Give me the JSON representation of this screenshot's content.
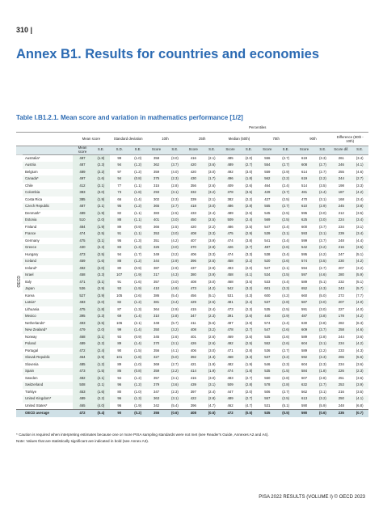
{
  "header": {
    "page_number": "310 |",
    "title": "Annex B1. Results for countries and economies"
  },
  "table": {
    "title": "Table I.B1.2.1. Mean score and variation in mathematics performance [1/2]",
    "group_label": "Percentiles",
    "columns": [
      "Mean score",
      "Standard deviation",
      "10th",
      "25th",
      "Median (50th)",
      "75th",
      "90th",
      "Difference (90th - 10th)"
    ],
    "subcolumns": [
      "Mean score",
      "S.E.",
      "S.D.",
      "S.E.",
      "Score",
      "S.E.",
      "Score",
      "S.E.",
      "Score",
      "S.E.",
      "Score",
      "S.E.",
      "Score",
      "S.E.",
      "Score dif.",
      "S.E."
    ],
    "side_label": "OECD",
    "rows": [
      {
        "country": "Australia*",
        "values": [
          "487",
          "(1.8)",
          "99",
          "(1.0)",
          "358",
          "(3.0)",
          "416",
          "(2.1)",
          "485",
          "(2.0)",
          "556",
          "(2.7)",
          "619",
          "(3.3)",
          "261",
          "(3.4)"
        ]
      },
      {
        "country": "Austria",
        "values": [
          "487",
          "(2.3)",
          "94",
          "(1.2)",
          "362",
          "(3.7)",
          "420",
          "(3.6)",
          "489",
          "(2.7)",
          "554",
          "(2.7)",
          "608",
          "(2.7)",
          "246",
          "(4.1)"
        ]
      },
      {
        "country": "Belgium",
        "values": [
          "489",
          "(2.2)",
          "97",
          "(1.2)",
          "359",
          "(4.0)",
          "420",
          "(3.0)",
          "492",
          "(3.0)",
          "559",
          "(2.9)",
          "614",
          "(2.7)",
          "255",
          "(4.6)"
        ]
      },
      {
        "country": "Canada*",
        "values": [
          "497",
          "(1.6)",
          "94",
          "(0.8)",
          "375",
          "(2.3)",
          "430",
          "(1.7)",
          "496",
          "(1.8)",
          "562",
          "(2.2)",
          "619",
          "(2.2)",
          "244",
          "(2.7)"
        ]
      },
      {
        "country": "Chile",
        "values": [
          "412",
          "(2.1)",
          "77",
          "(1.1)",
          "315",
          "(2.8)",
          "356",
          "(2.6)",
          "409",
          "(2.6)",
          "464",
          "(2.4)",
          "514",
          "(3.5)",
          "198",
          "(3.3)"
        ]
      },
      {
        "country": "Colombia",
        "values": [
          "383",
          "(3.0)",
          "73",
          "(1.8)",
          "293",
          "(3.1)",
          "332",
          "(3.2)",
          "378",
          "(3.5)",
          "429",
          "(3.7)",
          "481",
          "(4.4)",
          "187",
          "(4.2)"
        ]
      },
      {
        "country": "Costa Rica",
        "values": [
          "385",
          "(1.9)",
          "66",
          "(1.4)",
          "302",
          "(2.3)",
          "339",
          "(2.1)",
          "382",
          "(2.2)",
          "427",
          "(2.5)",
          "470",
          "(3.1)",
          "168",
          "(3.4)"
        ]
      },
      {
        "country": "Czech Republic",
        "values": [
          "487",
          "(2.1)",
          "95",
          "(1.2)",
          "365",
          "(2.7)",
          "418",
          "(3.0)",
          "486",
          "(2.8)",
          "555",
          "(2.7)",
          "610",
          "(2.9)",
          "245",
          "(3.8)"
        ]
      },
      {
        "country": "Denmark*",
        "values": [
          "489",
          "(1.9)",
          "82",
          "(1.1)",
          "383",
          "(2.5)",
          "433",
          "(2.4)",
          "489",
          "(2.5)",
          "545",
          "(2.5)",
          "595",
          "(3.0)",
          "212",
          "(3.5)"
        ]
      },
      {
        "country": "Estonia",
        "values": [
          "510",
          "(2.0)",
          "88",
          "(1.1)",
          "401",
          "(3.0)",
          "450",
          "(2.5)",
          "509",
          "(2.4)",
          "569",
          "(2.5)",
          "625",
          "(3.0)",
          "224",
          "(3.4)"
        ]
      },
      {
        "country": "Finland",
        "values": [
          "484",
          "(1.9)",
          "89",
          "(0.9)",
          "366",
          "(2.5)",
          "420",
          "(2.2)",
          "486",
          "(2.5)",
          "547",
          "(2.4)",
          "600",
          "(3.7)",
          "234",
          "(3.1)"
        ]
      },
      {
        "country": "France",
        "values": [
          "474",
          "(2.5)",
          "91",
          "(1.1)",
          "353",
          "(3.0)",
          "408",
          "(3.3)",
          "475",
          "(2.9)",
          "539",
          "(3.1)",
          "593",
          "(3.1)",
          "239",
          "(3.4)"
        ]
      },
      {
        "country": "Germany",
        "values": [
          "475",
          "(3.1)",
          "95",
          "(1.3)",
          "351",
          "(4.2)",
          "407",
          "(3.9)",
          "474",
          "(3.8)",
          "541",
          "(3.4)",
          "599",
          "(3.7)",
          "248",
          "(4.4)"
        ]
      },
      {
        "country": "Greece",
        "values": [
          "430",
          "(2.3)",
          "83",
          "(1.3)",
          "326",
          "(3.0)",
          "370",
          "(2.8)",
          "426",
          "(2.7)",
          "487",
          "(2.6)",
          "542",
          "(3.2)",
          "216",
          "(3.5)"
        ]
      },
      {
        "country": "Hungary",
        "values": [
          "473",
          "(2.5)",
          "94",
          "(1.7)",
          "349",
          "(3.2)",
          "406",
          "(3.3)",
          "474",
          "(3.3)",
          "538",
          "(3.4)",
          "595",
          "(4.2)",
          "247",
          "(5.1)"
        ]
      },
      {
        "country": "Iceland",
        "values": [
          "459",
          "(1.6)",
          "88",
          "(1.2)",
          "344",
          "(2.9)",
          "396",
          "(2.5)",
          "458",
          "(2.2)",
          "520",
          "(2.6)",
          "574",
          "(3.5)",
          "230",
          "(4.2)"
        ]
      },
      {
        "country": "Ireland*",
        "values": [
          "492",
          "(2.0)",
          "80",
          "(0.9)",
          "387",
          "(2.9)",
          "437",
          "(2.9)",
          "493",
          "(2.0)",
          "547",
          "(2.1)",
          "594",
          "(2.7)",
          "207",
          "(3.2)"
        ]
      },
      {
        "country": "Israel",
        "values": [
          "458",
          "(3.3)",
          "107",
          "(1.9)",
          "317",
          "(4.3)",
          "380",
          "(3.9)",
          "458",
          "(4.1)",
          "534",
          "(3.5)",
          "597",
          "(4.6)",
          "280",
          "(5.9)"
        ]
      },
      {
        "country": "Italy",
        "values": [
          "471",
          "(3.1)",
          "91",
          "(1.6)",
          "357",
          "(3.0)",
          "408",
          "(3.0)",
          "468",
          "(3.5)",
          "533",
          "(4.4)",
          "589",
          "(5.1)",
          "232",
          "(5.1)"
        ]
      },
      {
        "country": "Japan",
        "values": [
          "536",
          "(2.9)",
          "93",
          "(1.9)",
          "410",
          "(4.9)",
          "473",
          "(4.2)",
          "542",
          "(3.2)",
          "601",
          "(3.3)",
          "652",
          "(4.3)",
          "243",
          "(5.7)"
        ]
      },
      {
        "country": "Korea",
        "values": [
          "527",
          "(3.9)",
          "105",
          "(2.6)",
          "386",
          "(5.4)",
          "456",
          "(5.1)",
          "531",
          "(4.3)",
          "600",
          "(4.2)",
          "660",
          "(5.0)",
          "272",
          "(7.7)"
        ]
      },
      {
        "country": "Latvia*",
        "values": [
          "483",
          "(2.0)",
          "82",
          "(1.2)",
          "381",
          "(3.4)",
          "429",
          "(2.5)",
          "481",
          "(2.4)",
          "537",
          "(2.8)",
          "587",
          "(3.0)",
          "207",
          "(4.0)"
        ]
      },
      {
        "country": "Lithuania",
        "values": [
          "475",
          "(1.8)",
          "87",
          "(1.3)",
          "364",
          "(2.9)",
          "415",
          "(2.4)",
          "473",
          "(2.3)",
          "535",
          "(2.5)",
          "591",
          "(3.0)",
          "227",
          "(4.0)"
        ]
      },
      {
        "country": "Mexico",
        "values": [
          "395",
          "(2.3)",
          "69",
          "(1.4)",
          "310",
          "(2.8)",
          "347",
          "(2.3)",
          "391",
          "(2.6)",
          "440",
          "(2.9)",
          "487",
          "(3.8)",
          "178",
          "(4.2)"
        ]
      },
      {
        "country": "Netherlands*",
        "values": [
          "493",
          "(3.5)",
          "106",
          "(2.1)",
          "348",
          "(5.7)",
          "411",
          "(5.6)",
          "497",
          "(4.9)",
          "574",
          "(4.4)",
          "630",
          "(3.8)",
          "282",
          "(6.3)"
        ]
      },
      {
        "country": "New Zealand*",
        "values": [
          "479",
          "(2.0)",
          "99",
          "(1.4)",
          "350",
          "(3.2)",
          "408",
          "(3.2)",
          "478",
          "(2.7)",
          "547",
          "(2.6)",
          "609",
          "(3.7)",
          "258",
          "(4.6)"
        ]
      },
      {
        "country": "Norway",
        "values": [
          "468",
          "(2.1)",
          "93",
          "(0.9)",
          "345",
          "(2.6)",
          "401",
          "(2.6)",
          "469",
          "(2.6)",
          "535",
          "(2.6)",
          "589",
          "(2.8)",
          "244",
          "(3.6)"
        ]
      },
      {
        "country": "Poland",
        "values": [
          "489",
          "(2.2)",
          "89",
          "(1.4)",
          "370",
          "(3.1)",
          "426",
          "(2.6)",
          "492",
          "(2.5)",
          "552",
          "(2.6)",
          "604",
          "(3.1)",
          "234",
          "(4.2)"
        ]
      },
      {
        "country": "Portugal",
        "values": [
          "472",
          "(2.4)",
          "90",
          "(1.5)",
          "356",
          "(4.1)",
          "406",
          "(3.0)",
          "471",
          "(2.8)",
          "536",
          "(2.7)",
          "589",
          "(2.2)",
          "233",
          "(4.3)"
        ]
      },
      {
        "country": "Slovak Republic",
        "values": [
          "464",
          "(2.9)",
          "101",
          "(1.8)",
          "327",
          "(5.0)",
          "392",
          "(4.3)",
          "468",
          "(3.3)",
          "537",
          "(3.2)",
          "592",
          "(3.3)",
          "265",
          "(5.6)"
        ]
      },
      {
        "country": "Slovenia",
        "values": [
          "485",
          "(1.2)",
          "89",
          "(1.0)",
          "369",
          "(2.7)",
          "421",
          "(1.9)",
          "482",
          "(1.9)",
          "546",
          "(2.3)",
          "604",
          "(2.3)",
          "234",
          "(3.6)"
        ]
      },
      {
        "country": "Spain",
        "values": [
          "473",
          "(1.5)",
          "86",
          "(0.8)",
          "359",
          "(2.2)",
          "414",
          "(1.9)",
          "474",
          "(1.8)",
          "535",
          "(1.5)",
          "584",
          "(1.8)",
          "226",
          "(2.3)"
        ]
      },
      {
        "country": "Sweden",
        "values": [
          "482",
          "(2.1)",
          "94",
          "(1.2)",
          "357",
          "(3.1)",
          "415",
          "(3.0)",
          "483",
          "(2.7)",
          "550",
          "(2.8)",
          "607",
          "(2.8)",
          "251",
          "(3.6)"
        ]
      },
      {
        "country": "Switzerland",
        "values": [
          "508",
          "(2.1)",
          "96",
          "(1.2)",
          "379",
          "(3.6)",
          "439",
          "(3.1)",
          "509",
          "(2.8)",
          "578",
          "(2.8)",
          "632",
          "(2.7)",
          "253",
          "(3.9)"
        ]
      },
      {
        "country": "Türkiye",
        "values": [
          "453",
          "(1.6)",
          "80",
          "(1.0)",
          "347",
          "(2.3)",
          "397",
          "(2.4)",
          "447",
          "(2.0)",
          "506",
          "(2.7)",
          "562",
          "(3.1)",
          "216",
          "(3.5)"
        ]
      },
      {
        "country": "United Kingdom*",
        "values": [
          "489",
          "(2.2)",
          "96",
          "(1.3)",
          "363",
          "(3.1)",
          "422",
          "(2.8)",
          "489",
          "(2.7)",
          "557",
          "(2.5)",
          "613",
          "(3.2)",
          "250",
          "(4.1)"
        ]
      },
      {
        "country": "United States*",
        "values": [
          "465",
          "(4.0)",
          "96",
          "(1.9)",
          "342",
          "(5.4)",
          "396",
          "(4.7)",
          "462",
          "(4.7)",
          "531",
          "(5.1)",
          "590",
          "(5.9)",
          "248",
          "(6.8)"
        ]
      }
    ],
    "average": {
      "country": "OECD average",
      "values": [
        "472",
        "(0.4)",
        "90",
        "(0.2)",
        "355",
        "(0.6)",
        "408",
        "(0.5)",
        "472",
        "(0.5)",
        "535",
        "(0.5)",
        "590",
        "(0.6)",
        "235",
        "(0.7)"
      ]
    },
    "notes": [
      "* Caution is required when interpreting estimates because one or more PISA sampling standards were not met (see Reader's Guide, Annexes A2 and A4).",
      "Note: Values that are statistically significant are indicated in bold (see Annex A3)."
    ]
  },
  "footer": {
    "text": "PISA 2022 RESULTS (VOLUME I) © OECD 2023"
  }
}
